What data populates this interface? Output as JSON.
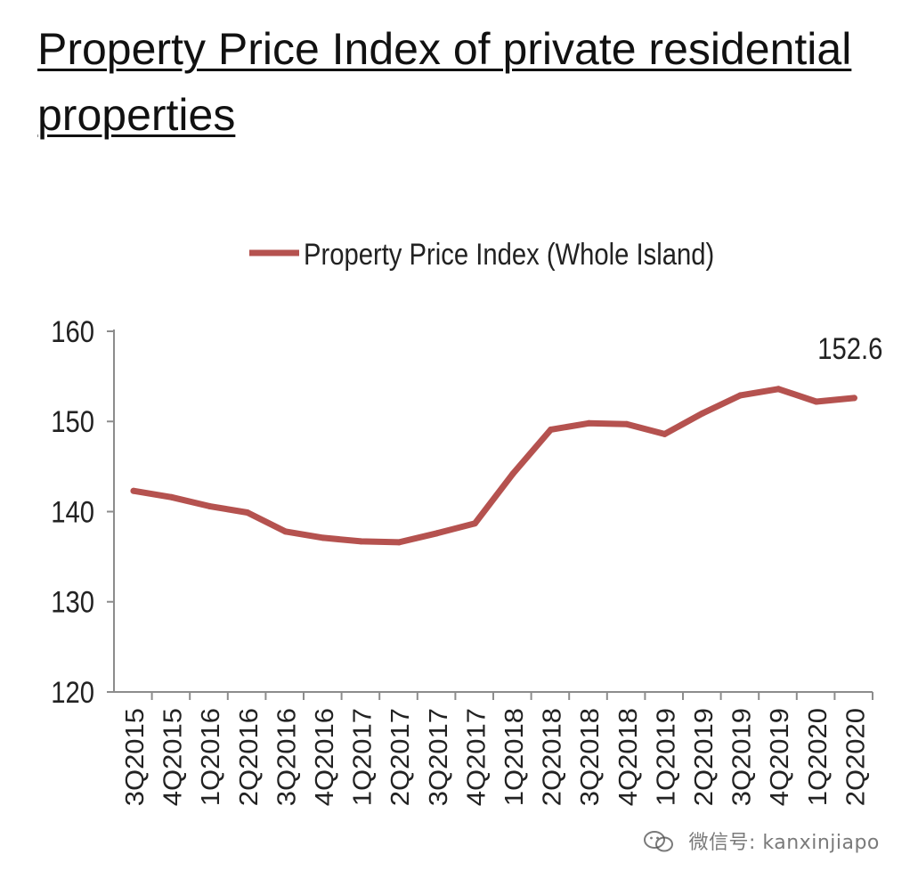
{
  "page": {
    "title": "Property Price Index of private residential properties"
  },
  "chart_data": {
    "type": "line",
    "title": "Property Price Index of private residential properties",
    "xlabel": "",
    "ylabel": "",
    "ylim": [
      120,
      160
    ],
    "yticks": [
      120,
      130,
      140,
      150,
      160
    ],
    "grid": false,
    "legend_position": "top-center",
    "categories": [
      "3Q2015",
      "4Q2015",
      "1Q2016",
      "2Q2016",
      "3Q2016",
      "4Q2016",
      "1Q2017",
      "2Q2017",
      "3Q2017",
      "4Q2017",
      "1Q2018",
      "2Q2018",
      "3Q2018",
      "4Q2018",
      "1Q2019",
      "2Q2019",
      "3Q2019",
      "4Q2019",
      "1Q2020",
      "2Q2020"
    ],
    "series": [
      {
        "name": "Property Price Index (Whole Island)",
        "color": "#b5524f",
        "values": [
          142.3,
          141.6,
          140.6,
          139.9,
          137.8,
          137.1,
          136.7,
          136.6,
          137.6,
          138.7,
          144.2,
          149.1,
          149.8,
          149.7,
          148.6,
          150.9,
          152.9,
          153.6,
          152.2,
          152.6
        ]
      }
    ],
    "annotations": [
      {
        "category": "2Q2020",
        "text": "152.6"
      }
    ]
  },
  "watermark": {
    "text": "微信号: kanxinjiapo",
    "icon": "wechat-icon"
  }
}
